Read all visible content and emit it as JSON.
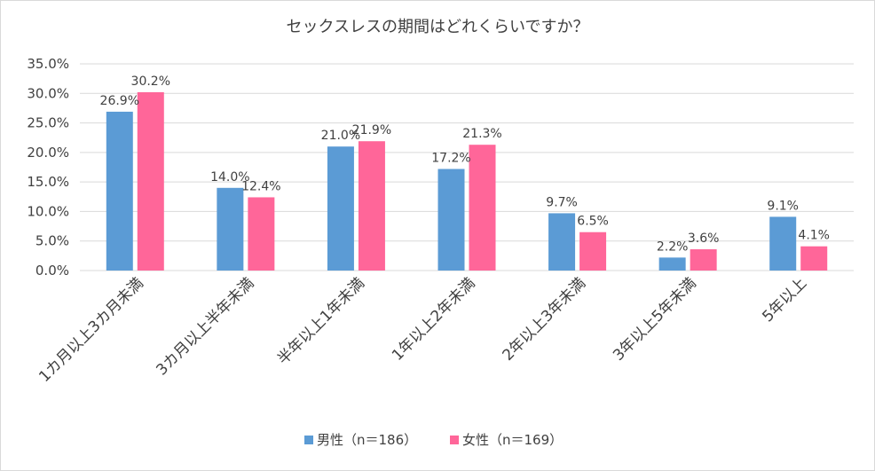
{
  "chart_data": {
    "type": "bar",
    "title": "セックスレスの期間はどれくらいですか？",
    "categories": [
      "1カ月以上3カ月未満",
      "3カ月以上半年未満",
      "半年以上1年未満",
      "1年以上2年未満",
      "2年以上3年未満",
      "3年以上5年未満",
      "5年以上"
    ],
    "series": [
      {
        "name": "男性（n＝186）",
        "color": "#5b9bd5",
        "values": [
          26.9,
          14.0,
          21.0,
          17.2,
          9.7,
          2.2,
          9.1
        ],
        "labels": [
          "26.9%",
          "14.0%",
          "21.0%",
          "17.2%",
          "9.7%",
          "2.2%",
          "9.1%"
        ]
      },
      {
        "name": "女性（n＝169）",
        "color": "#ff6699",
        "values": [
          30.2,
          12.4,
          21.9,
          21.3,
          6.5,
          3.6,
          4.1
        ],
        "labels": [
          "30.2%",
          "12.4%",
          "21.9%",
          "21.3%",
          "6.5%",
          "3.6%",
          "4.1%"
        ]
      }
    ],
    "ylim": [
      0,
      35
    ],
    "yticks": [
      "0.0%",
      "5.0%",
      "10.0%",
      "15.0%",
      "20.0%",
      "25.0%",
      "30.0%",
      "35.0%"
    ],
    "grid": true,
    "legend": "bottom",
    "xlabel": "",
    "ylabel": ""
  }
}
